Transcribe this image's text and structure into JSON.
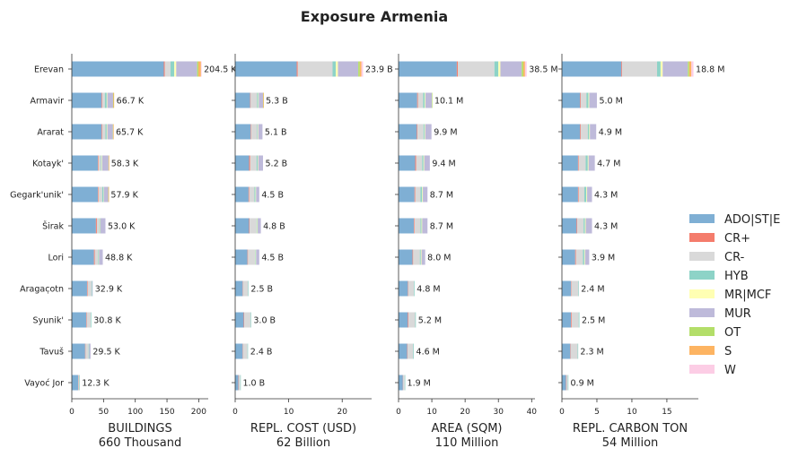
{
  "chart_data": {
    "title": "Exposure Armenia",
    "type": "bar",
    "orientation": "horizontal",
    "stacked": true,
    "regions": [
      "Erevan",
      "Armavir",
      "Ararat",
      "Kotayk'",
      "Gegark'unik'",
      "Širak",
      "Lori",
      "Aragac̣otn",
      "Syunik'",
      "Tavuš",
      "Vayoć Jor"
    ],
    "categories": [
      {
        "name": "ADO|ST|E",
        "color": "#7fafd4"
      },
      {
        "name": "CR+",
        "color": "#f47c6c"
      },
      {
        "name": "CR-",
        "color": "#d9d9d9"
      },
      {
        "name": "HYB",
        "color": "#8dd3c7"
      },
      {
        "name": "MR|MCF",
        "color": "#ffffb3"
      },
      {
        "name": "MUR",
        "color": "#bebada"
      },
      {
        "name": "OT",
        "color": "#b3de69"
      },
      {
        "name": "S",
        "color": "#fdb462"
      },
      {
        "name": "W",
        "color": "#fccde5"
      }
    ],
    "legend": {
      "position": "right"
    },
    "panels": [
      {
        "label": "BUILDINGS",
        "total": "660 Thousand",
        "xlim": [
          0,
          215
        ],
        "xticks": [
          0,
          50,
          100,
          150,
          200
        ],
        "xtick_labels": [
          "0",
          "50",
          "100",
          "150",
          "200"
        ],
        "totals_labels": [
          "204.5 K",
          "66.7 K",
          "65.7 K",
          "58.3 K",
          "57.9 K",
          "53.0 K",
          "48.8 K",
          "32.9 K",
          "30.8 K",
          "29.5 K",
          "12.3 K"
        ],
        "values": [
          [
            145,
            1.5,
            9,
            6,
            3,
            33,
            2,
            4,
            1
          ],
          [
            47,
            1,
            4,
            3,
            1,
            9,
            0.7,
            1,
            0
          ],
          [
            47,
            1,
            5,
            2,
            1,
            8.7,
            0.5,
            0.5,
            0
          ],
          [
            41,
            1,
            4,
            1,
            0.8,
            10,
            0.3,
            0.2,
            0
          ],
          [
            41,
            1,
            6,
            2,
            0.5,
            7,
            0.2,
            0.2,
            0
          ],
          [
            38,
            1.5,
            4,
            1,
            0.5,
            8,
            0,
            0,
            0
          ],
          [
            35,
            1.3,
            5,
            1,
            0.5,
            6,
            0,
            0,
            0
          ],
          [
            24,
            1,
            6,
            1,
            0,
            0.9,
            0,
            0,
            0
          ],
          [
            23,
            0.8,
            6,
            1,
            0,
            0,
            0,
            0,
            0
          ],
          [
            21,
            0.5,
            5,
            1,
            0,
            2,
            0,
            0,
            0
          ],
          [
            10,
            0.3,
            1.5,
            0.5,
            0,
            0,
            0,
            0,
            0
          ]
        ]
      },
      {
        "label": "REPL. COST (USD)",
        "total": "62 Billion",
        "xlim": [
          0,
          25.5
        ],
        "xticks": [
          0,
          10,
          20
        ],
        "xtick_labels": [
          "0",
          "10",
          "20"
        ],
        "totals_labels": [
          "23.9 B",
          "5.3 B",
          "5.1 B",
          "5.2 B",
          "4.5 B",
          "4.8 B",
          "4.5 B",
          "2.5 B",
          "3.0 B",
          "2.4 B",
          "1.0 B"
        ],
        "values": [
          [
            11.5,
            0.2,
            6.5,
            0.6,
            0.4,
            3.8,
            0.3,
            0.3,
            0.3
          ],
          [
            2.8,
            0.1,
            1.2,
            0.2,
            0.1,
            0.8,
            0.05,
            0.05,
            0
          ],
          [
            2.9,
            0.1,
            1.1,
            0.1,
            0.1,
            0.8,
            0,
            0,
            0
          ],
          [
            2.6,
            0.2,
            1.2,
            0.2,
            0.1,
            0.9,
            0,
            0,
            0
          ],
          [
            2.5,
            0.1,
            1.0,
            0.2,
            0.1,
            0.6,
            0,
            0,
            0
          ],
          [
            2.6,
            0.1,
            1.3,
            0.1,
            0.1,
            0.6,
            0,
            0,
            0
          ],
          [
            2.3,
            0.1,
            1.3,
            0.1,
            0.1,
            0.6,
            0,
            0,
            0
          ],
          [
            1.4,
            0.05,
            0.95,
            0.1,
            0,
            0,
            0,
            0,
            0
          ],
          [
            1.6,
            0.1,
            1.2,
            0.1,
            0,
            0,
            0,
            0,
            0
          ],
          [
            1.4,
            0.05,
            0.85,
            0.1,
            0,
            0,
            0,
            0,
            0
          ],
          [
            0.6,
            0.05,
            0.3,
            0.05,
            0,
            0,
            0,
            0,
            0
          ]
        ]
      },
      {
        "label": "AREA (SQM)",
        "total": "110 Million",
        "xlim": [
          0,
          41
        ],
        "xticks": [
          0,
          10,
          20,
          30,
          40
        ],
        "xtick_labels": [
          "0",
          "10",
          "20",
          "30",
          "40"
        ],
        "totals_labels": [
          "38.5 M",
          "10.1 M",
          "9.9 M",
          "9.4 M",
          "8.7 M",
          "8.7 M",
          "8.0 M",
          "4.8 M",
          "5.2 M",
          "4.6 M",
          "1.9 M"
        ],
        "values": [
          [
            17.5,
            0.3,
            11,
            1.2,
            0.6,
            6.4,
            0.5,
            0.5,
            0.5
          ],
          [
            5.6,
            0.2,
            1.6,
            0.5,
            0.2,
            1.9,
            0.1,
            0,
            0
          ],
          [
            5.5,
            0.2,
            1.8,
            0.3,
            0.2,
            1.9,
            0,
            0,
            0
          ],
          [
            5.0,
            0.3,
            1.8,
            0.4,
            0.2,
            1.7,
            0,
            0,
            0
          ],
          [
            4.8,
            0.2,
            1.6,
            0.5,
            0.2,
            1.4,
            0,
            0,
            0
          ],
          [
            4.6,
            0.2,
            1.8,
            0.3,
            0.2,
            1.6,
            0,
            0,
            0
          ],
          [
            4.2,
            0.2,
            2.0,
            0.3,
            0.2,
            1.1,
            0,
            0,
            0
          ],
          [
            2.8,
            0.1,
            1.7,
            0.2,
            0,
            0,
            0,
            0,
            0
          ],
          [
            2.8,
            0.2,
            2.0,
            0.2,
            0,
            0,
            0,
            0,
            0
          ],
          [
            2.6,
            0.1,
            1.7,
            0.2,
            0,
            0,
            0,
            0,
            0
          ],
          [
            1.3,
            0.05,
            0.5,
            0.05,
            0,
            0,
            0,
            0,
            0
          ]
        ]
      },
      {
        "label": "REPL. CARBON TON",
        "total": "54 Million",
        "xlim": [
          0,
          19.5
        ],
        "xticks": [
          0,
          5,
          10,
          15
        ],
        "xtick_labels": [
          "0",
          "5",
          "10",
          "15"
        ],
        "totals_labels": [
          "18.8 M",
          "5.0 M",
          "4.9 M",
          "4.7 M",
          "4.3 M",
          "4.3 M",
          "3.9 M",
          "2.4 M",
          "2.5 M",
          "2.3 M",
          "0.9 M"
        ],
        "values": [
          [
            8.5,
            0.1,
            5.0,
            0.5,
            0.3,
            3.6,
            0.2,
            0.3,
            0.3
          ],
          [
            2.6,
            0.1,
            0.8,
            0.3,
            0.1,
            1.1,
            0,
            0,
            0
          ],
          [
            2.6,
            0.1,
            1.0,
            0.2,
            0.1,
            0.9,
            0,
            0,
            0
          ],
          [
            2.3,
            0.1,
            1.0,
            0.3,
            0.1,
            0.9,
            0,
            0,
            0
          ],
          [
            2.3,
            0.1,
            0.8,
            0.3,
            0.1,
            0.7,
            0,
            0,
            0
          ],
          [
            2.1,
            0.1,
            0.9,
            0.2,
            0.1,
            0.9,
            0,
            0,
            0
          ],
          [
            1.9,
            0.1,
            1.0,
            0.2,
            0.1,
            0.6,
            0,
            0,
            0
          ],
          [
            1.3,
            0.05,
            1.0,
            0.05,
            0,
            0,
            0,
            0,
            0
          ],
          [
            1.3,
            0.1,
            1.0,
            0.1,
            0,
            0,
            0,
            0,
            0
          ],
          [
            1.2,
            0.05,
            1.0,
            0.05,
            0,
            0,
            0,
            0,
            0
          ],
          [
            0.6,
            0.05,
            0.2,
            0.05,
            0,
            0,
            0,
            0,
            0
          ]
        ]
      }
    ]
  }
}
